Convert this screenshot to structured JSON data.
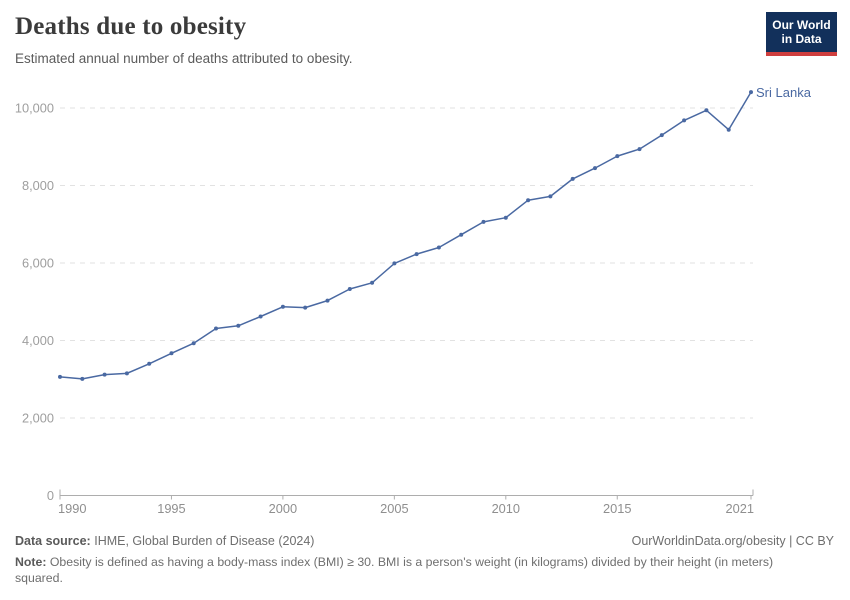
{
  "header": {
    "title": "Deaths due to obesity",
    "subtitle": "Estimated annual number of deaths attributed to obesity.",
    "logo": {
      "line1": "Our World",
      "line2": "in Data"
    }
  },
  "chart_data": {
    "type": "line",
    "title": "Deaths due to obesity",
    "subtitle": "Estimated annual number of deaths attributed to obesity.",
    "xlabel": "",
    "ylabel": "",
    "x": [
      1990,
      1991,
      1992,
      1993,
      1994,
      1995,
      1996,
      1997,
      1998,
      1999,
      2000,
      2001,
      2002,
      2003,
      2004,
      2005,
      2006,
      2007,
      2008,
      2009,
      2010,
      2011,
      2012,
      2013,
      2014,
      2015,
      2016,
      2017,
      2018,
      2019,
      2020,
      2021
    ],
    "series": [
      {
        "name": "Sri Lanka",
        "color": "#4a69a2",
        "values": [
          3060,
          3010,
          3120,
          3150,
          3400,
          3670,
          3930,
          4310,
          4380,
          4620,
          4870,
          4850,
          5030,
          5330,
          5490,
          5990,
          6230,
          6400,
          6730,
          7060,
          7170,
          7620,
          7720,
          8170,
          8450,
          8760,
          8940,
          9300,
          9680,
          9940,
          9440,
          10410
        ]
      }
    ],
    "xlim": [
      1990,
      2021
    ],
    "ylim": [
      0,
      10000
    ],
    "yticks": [
      0,
      2000,
      4000,
      6000,
      8000,
      10000
    ],
    "ytick_labels": [
      "0",
      "2,000",
      "4,000",
      "6,000",
      "8,000",
      "10,000"
    ],
    "xticks": [
      1990,
      1995,
      2000,
      2005,
      2010,
      2015,
      2021
    ],
    "grid": "horizontal-dashed",
    "legend_position": "end-of-line-label"
  },
  "footer": {
    "data_source_label": "Data source:",
    "data_source_value": "IHME, Global Burden of Disease (2024)",
    "credit": "OurWorldinData.org/obesity | CC BY",
    "note_label": "Note:",
    "note_value": "Obesity is defined as having a body-mass index (BMI) ≥ 30. BMI is a person's weight (in kilograms) divided by their height (in meters) squared."
  },
  "colors": {
    "line": "#4a69a2",
    "logo_bg": "#12305b",
    "logo_stripe": "#cf3e3e",
    "grid": "#e2e2e2",
    "axis": "#adadad",
    "ytick_label": "#9e9e9e",
    "xtick_label": "#8f8f8f"
  }
}
